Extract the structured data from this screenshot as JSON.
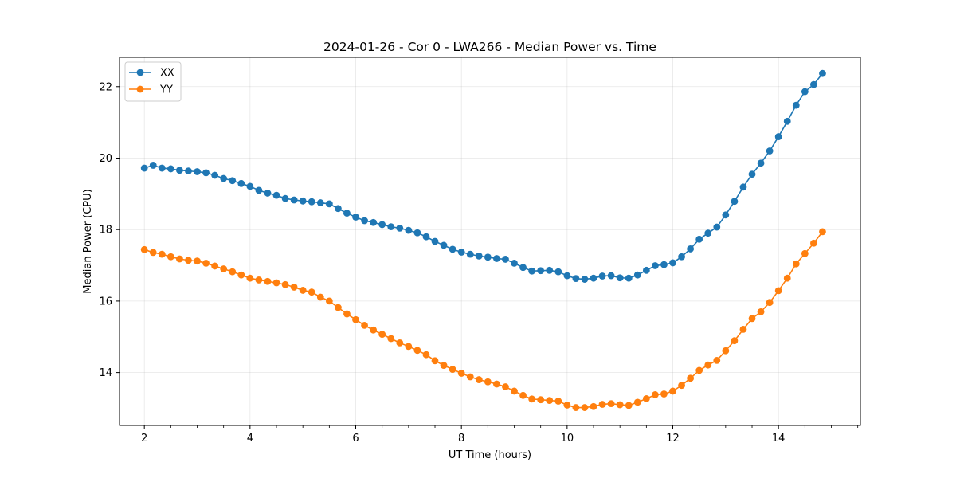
{
  "chart_data": {
    "type": "line",
    "title": "2024-01-26 - Cor 0 - LWA266 - Median Power vs. Time",
    "xlabel": "UT Time (hours)",
    "ylabel": "Median Power (CPU)",
    "xlim": [
      1.53,
      15.55
    ],
    "ylim": [
      12.52,
      22.82
    ],
    "xticks": [
      2,
      4,
      6,
      8,
      10,
      12,
      14
    ],
    "xtick_labels": [
      "2",
      "4",
      "6",
      "8",
      "10",
      "12",
      "14"
    ],
    "yticks": [
      14,
      16,
      18,
      20,
      22
    ],
    "ytick_labels": [
      "14",
      "16",
      "18",
      "20",
      "22"
    ],
    "grid": true,
    "legend": "top-left",
    "x": [
      2.0,
      2.1667,
      2.3333,
      2.5,
      2.6667,
      2.8333,
      3.0,
      3.1667,
      3.3333,
      3.5,
      3.6667,
      3.8333,
      4.0,
      4.1667,
      4.3333,
      4.5,
      4.6667,
      4.8333,
      5.0,
      5.1667,
      5.3333,
      5.5,
      5.6667,
      5.8333,
      6.0,
      6.1667,
      6.3333,
      6.5,
      6.6667,
      6.8333,
      7.0,
      7.1667,
      7.3333,
      7.5,
      7.6667,
      7.8333,
      8.0,
      8.1667,
      8.3333,
      8.5,
      8.6667,
      8.8333,
      9.0,
      9.1667,
      9.3333,
      9.5,
      9.6667,
      9.8333,
      10.0,
      10.1667,
      10.3333,
      10.5,
      10.6667,
      10.8333,
      11.0,
      11.1667,
      11.3333,
      11.5,
      11.6667,
      11.8333,
      12.0,
      12.1667,
      12.3333,
      12.5,
      12.6667,
      12.8333,
      13.0,
      13.1667,
      13.3333,
      13.5,
      13.6667,
      13.8333,
      14.0,
      14.1667,
      14.3333,
      14.5,
      14.6667,
      14.8333
    ],
    "series": [
      {
        "name": "XX",
        "color": "#1f77b4",
        "values": [
          19.72,
          19.8,
          19.72,
          19.7,
          19.66,
          19.64,
          19.62,
          19.59,
          19.52,
          19.43,
          19.37,
          19.29,
          19.21,
          19.1,
          19.02,
          18.96,
          18.87,
          18.83,
          18.8,
          18.78,
          18.75,
          18.72,
          18.59,
          18.46,
          18.35,
          18.25,
          18.2,
          18.14,
          18.08,
          18.04,
          17.98,
          17.91,
          17.8,
          17.67,
          17.56,
          17.45,
          17.37,
          17.31,
          17.26,
          17.23,
          17.19,
          17.17,
          17.06,
          16.94,
          16.84,
          16.85,
          16.86,
          16.82,
          16.71,
          16.63,
          16.61,
          16.64,
          16.7,
          16.71,
          16.65,
          16.64,
          16.73,
          16.86,
          16.99,
          17.02,
          17.07,
          17.24,
          17.46,
          17.73,
          17.9,
          18.07,
          18.41,
          18.79,
          19.19,
          19.55,
          19.86,
          20.2,
          20.6,
          21.03,
          21.48,
          21.86,
          22.06,
          22.37
        ]
      },
      {
        "name": "YY",
        "color": "#ff7f0e",
        "values": [
          17.44,
          17.36,
          17.31,
          17.24,
          17.18,
          17.14,
          17.12,
          17.06,
          16.98,
          16.9,
          16.82,
          16.73,
          16.64,
          16.59,
          16.55,
          16.51,
          16.46,
          16.39,
          16.3,
          16.25,
          16.11,
          16.0,
          15.82,
          15.64,
          15.48,
          15.32,
          15.19,
          15.07,
          14.95,
          14.83,
          14.73,
          14.62,
          14.5,
          14.33,
          14.2,
          14.09,
          13.98,
          13.88,
          13.8,
          13.74,
          13.68,
          13.6,
          13.48,
          13.36,
          13.26,
          13.24,
          13.22,
          13.2,
          13.09,
          13.02,
          13.02,
          13.05,
          13.11,
          13.13,
          13.1,
          13.08,
          13.17,
          13.27,
          13.38,
          13.4,
          13.48,
          13.64,
          13.84,
          14.06,
          14.21,
          14.34,
          14.61,
          14.89,
          15.21,
          15.51,
          15.7,
          15.96,
          16.29,
          16.64,
          17.04,
          17.33,
          17.62,
          17.94
        ]
      }
    ]
  }
}
